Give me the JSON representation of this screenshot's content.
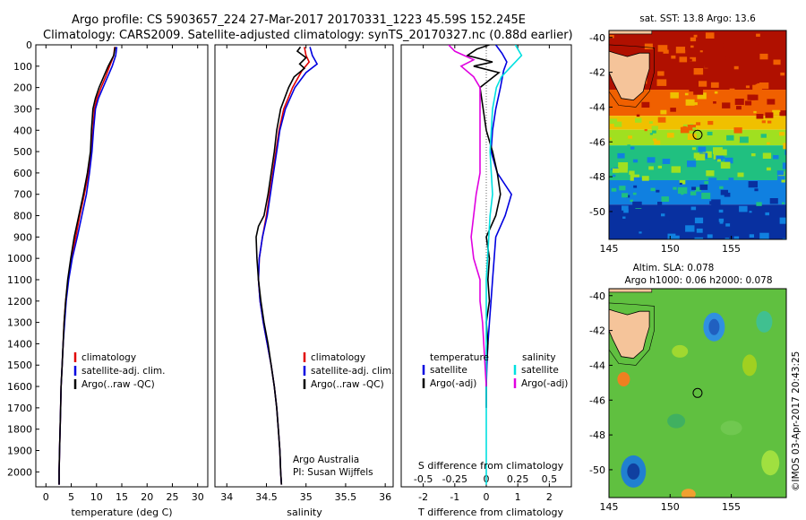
{
  "header": {
    "line1": "Argo profile: CS 5903657_224 27-Mar-2017 20170331_1223 45.59S 152.245E",
    "line2": "Climatology: CARS2009. Satellite-adjusted climatology: synTS_20170327.nc (0.88d earlier)"
  },
  "colors": {
    "climatology": "#e00000",
    "satellite": "#0000e0",
    "argo": "#000000",
    "s_satellite": "#00e0e0",
    "s_argo": "#e000e0",
    "circle": "#000000",
    "land": "#f5c49a"
  },
  "copyright": "©IMOS 03-Apr-2017 20:43:25",
  "credit": {
    "line1": "Argo Australia",
    "line2": "PI: Susan Wijffels"
  },
  "chart_data": [
    {
      "type": "line",
      "id": "temperature",
      "xlabel": "temperature (deg C)",
      "ylabel": "",
      "xlim": [
        -2,
        32
      ],
      "ylim": [
        2070,
        0
      ],
      "xticks": [
        0,
        5,
        10,
        15,
        20,
        25,
        30
      ],
      "yticks": [
        0,
        100,
        200,
        300,
        400,
        500,
        600,
        700,
        800,
        900,
        1000,
        1100,
        1200,
        1300,
        1400,
        1500,
        1600,
        1700,
        1800,
        1900,
        2000
      ],
      "legend": [
        "climatology",
        "satellite-adj. clim.",
        "Argo(..raw -QC)"
      ],
      "legend_position": "lower-center",
      "series": [
        {
          "name": "climatology",
          "color": "#e00000",
          "depth": [
            10,
            50,
            100,
            150,
            200,
            250,
            300,
            400,
            500,
            600,
            700,
            800,
            900,
            1000,
            1100,
            1200,
            1300,
            1400,
            1500,
            1600,
            1700,
            1800,
            1900,
            2000,
            2060
          ],
          "values": [
            13.6,
            13.4,
            12.6,
            11.8,
            10.9,
            10.1,
            9.6,
            9.3,
            9.0,
            8.4,
            7.6,
            6.7,
            5.9,
            5.0,
            4.4,
            3.9,
            3.6,
            3.4,
            3.2,
            3.0,
            2.9,
            2.8,
            2.7,
            2.6,
            2.6
          ]
        },
        {
          "name": "satellite-adj. clim.",
          "color": "#0000e0",
          "depth": [
            10,
            50,
            100,
            150,
            200,
            250,
            300,
            400,
            500,
            600,
            700,
            800,
            900,
            1000,
            1100,
            1200,
            1300,
            1400,
            1500,
            1600,
            1700,
            1800,
            1900,
            2000,
            2060
          ],
          "values": [
            14.0,
            13.8,
            13.1,
            12.2,
            11.3,
            10.4,
            9.8,
            9.4,
            9.1,
            8.6,
            8.0,
            7.1,
            6.2,
            5.2,
            4.5,
            4.0,
            3.7,
            3.4,
            3.2,
            3.0,
            2.9,
            2.8,
            2.7,
            2.6,
            2.6
          ]
        },
        {
          "name": "Argo(..raw -QC)",
          "color": "#000000",
          "depth": [
            10,
            50,
            100,
            150,
            200,
            250,
            300,
            400,
            500,
            600,
            700,
            800,
            900,
            1000,
            1100,
            1200,
            1300,
            1400,
            1500,
            1600,
            1700,
            1800,
            1900,
            2000,
            2060
          ],
          "values": [
            13.7,
            13.4,
            12.3,
            11.4,
            10.5,
            9.8,
            9.3,
            9.0,
            8.8,
            8.2,
            7.4,
            6.5,
            5.6,
            4.9,
            4.3,
            3.9,
            3.6,
            3.4,
            3.2,
            3.0,
            2.9,
            2.8,
            2.7,
            2.6,
            2.6
          ]
        }
      ]
    },
    {
      "type": "line",
      "id": "salinity",
      "xlabel": "salinity",
      "ylabel": "",
      "xlim": [
        33.85,
        36.1
      ],
      "ylim": [
        2070,
        0
      ],
      "xticks": [
        34,
        34.5,
        35,
        35.5,
        36
      ],
      "legend": [
        "climatology",
        "satellite-adj. clim.",
        "Argo(..raw -QC)"
      ],
      "legend_position": "lower-center",
      "series": [
        {
          "name": "climatology",
          "color": "#e00000",
          "depth": [
            10,
            50,
            80,
            120,
            200,
            300,
            400,
            500,
            600,
            700,
            800,
            900,
            1000,
            1100,
            1200,
            1300,
            1400,
            1500,
            1600,
            1700,
            1800,
            1900,
            2000,
            2060
          ],
          "values": [
            34.98,
            35.0,
            35.04,
            34.95,
            34.83,
            34.72,
            34.66,
            34.62,
            34.58,
            34.54,
            34.5,
            34.45,
            34.41,
            34.4,
            34.42,
            34.46,
            34.51,
            34.56,
            34.6,
            34.63,
            34.65,
            34.67,
            34.68,
            34.69
          ]
        },
        {
          "name": "satellite-adj. clim.",
          "color": "#0000e0",
          "depth": [
            10,
            50,
            90,
            130,
            200,
            300,
            400,
            500,
            600,
            700,
            800,
            900,
            1000,
            1100,
            1200,
            1300,
            1400,
            1500,
            1600,
            1700,
            1800,
            1900,
            2000,
            2060
          ],
          "values": [
            35.05,
            35.08,
            35.14,
            35.0,
            34.86,
            34.74,
            34.67,
            34.63,
            34.59,
            34.55,
            34.51,
            34.45,
            34.41,
            34.4,
            34.42,
            34.46,
            34.51,
            34.56,
            34.6,
            34.63,
            34.65,
            34.67,
            34.68,
            34.69
          ]
        },
        {
          "name": "Argo(..raw -QC)",
          "color": "#000000",
          "depth": [
            10,
            30,
            60,
            90,
            110,
            150,
            200,
            300,
            400,
            500,
            600,
            700,
            800,
            850,
            900,
            1000,
            1100,
            1200,
            1300,
            1400,
            1500,
            1600,
            1700,
            1800,
            1900,
            2000,
            2060
          ],
          "values": [
            34.93,
            34.89,
            35.0,
            34.92,
            34.98,
            34.85,
            34.78,
            34.68,
            34.63,
            34.6,
            34.56,
            34.52,
            34.47,
            34.4,
            34.37,
            34.38,
            34.4,
            34.43,
            34.47,
            34.52,
            34.56,
            34.6,
            34.63,
            34.65,
            34.67,
            34.68,
            34.69
          ]
        }
      ]
    },
    {
      "type": "line",
      "id": "difference",
      "xlabel": "T difference from climatology",
      "xlabel_top": "S difference from climatology",
      "xlim": [
        -2.7,
        2.7
      ],
      "ylim": [
        2070,
        0
      ],
      "xticks": [
        -2,
        -1,
        0,
        1,
        2
      ],
      "s_tick_labels": [
        "-0.5",
        "-0.25",
        "0",
        "0.25",
        "0.5"
      ],
      "s_ticks": [
        -0.5,
        -0.25,
        0,
        0.25,
        0.5
      ],
      "legend": {
        "temperature_title": "temperature",
        "salinity_title": "salinity",
        "items": [
          "satellite",
          "Argo(-adj)",
          "satellite",
          "Argo(-adj)"
        ]
      },
      "series": [
        {
          "name": "satellite",
          "group": "temperature",
          "color": "#0000e0",
          "depth": [
            0,
            40,
            80,
            120,
            200,
            300,
            400,
            500,
            600,
            700,
            800,
            900,
            1000,
            1100,
            1200,
            1300,
            1400,
            1500,
            1600,
            1700
          ],
          "values": [
            0.3,
            0.5,
            0.65,
            0.55,
            0.45,
            0.3,
            0.2,
            0.15,
            0.35,
            0.8,
            0.6,
            0.3,
            0.25,
            0.2,
            0.15,
            0.1,
            0.05,
            0.02,
            0.0,
            0.0
          ]
        },
        {
          "name": "Argo(-adj)",
          "group": "temperature",
          "color": "#000000",
          "depth": [
            0,
            20,
            50,
            80,
            100,
            130,
            200,
            300,
            400,
            500,
            600,
            700,
            800,
            900,
            1000,
            1100,
            1200,
            1300,
            1400,
            1500,
            1600,
            1700
          ],
          "values": [
            0.1,
            -0.3,
            -0.6,
            0.2,
            -0.4,
            0.4,
            -0.2,
            -0.1,
            0.0,
            0.2,
            0.35,
            0.45,
            0.3,
            0.0,
            0.1,
            0.05,
            0.1,
            0.0,
            0.05,
            0.0,
            0.0,
            0.0
          ]
        },
        {
          "name": "satellite",
          "group": "salinity",
          "color": "#00e0e0",
          "depth": [
            0,
            50,
            100,
            150,
            200,
            300,
            400,
            500,
            600,
            700,
            800,
            900,
            1000,
            1100,
            1200,
            1400,
            1600,
            1800,
            2000,
            2060
          ],
          "values": [
            0.23,
            0.28,
            0.2,
            0.12,
            0.08,
            0.05,
            0.04,
            0.03,
            0.04,
            0.05,
            0.03,
            0.02,
            0.01,
            0.0,
            0.0,
            0.0,
            0.0,
            0.0,
            0.0,
            0.0
          ]
        },
        {
          "name": "Argo(-adj)",
          "group": "salinity",
          "color": "#e000e0",
          "depth": [
            0,
            30,
            70,
            100,
            150,
            200,
            300,
            400,
            500,
            600,
            700,
            800,
            900,
            1000,
            1100,
            1200,
            1300,
            1400,
            1500,
            1600
          ],
          "values": [
            -0.3,
            -0.25,
            -0.1,
            -0.2,
            -0.1,
            -0.05,
            -0.05,
            -0.05,
            -0.05,
            -0.05,
            -0.08,
            -0.1,
            -0.12,
            -0.1,
            -0.05,
            -0.05,
            -0.03,
            -0.02,
            -0.01,
            0.0
          ]
        }
      ]
    },
    {
      "type": "heatmap",
      "id": "sst-map",
      "title": "sat. SST: 13.8 Argo: 13.6",
      "xlim": [
        145,
        159.5
      ],
      "ylim": [
        -51.6,
        -39.6
      ],
      "xticks": [
        145,
        150,
        155
      ],
      "yticks": [
        -40,
        -42,
        -44,
        -46,
        -48,
        -50
      ],
      "profile_marker": {
        "lon": 152.245,
        "lat": -45.59
      },
      "color_bands": [
        {
          "lat_from": -39.6,
          "lat_to": -43.0,
          "color": "#b01000"
        },
        {
          "lat_from": -43.0,
          "lat_to": -44.5,
          "color": "#f06000"
        },
        {
          "lat_from": -44.5,
          "lat_to": -45.3,
          "color": "#f0c000"
        },
        {
          "lat_from": -45.3,
          "lat_to": -46.2,
          "color": "#a0e020"
        },
        {
          "lat_from": -46.2,
          "lat_to": -48.2,
          "color": "#20c080"
        },
        {
          "lat_from": -48.2,
          "lat_to": -49.6,
          "color": "#1080e0"
        },
        {
          "lat_from": -49.6,
          "lat_to": -51.6,
          "color": "#0830a0"
        }
      ]
    },
    {
      "type": "heatmap",
      "id": "sla-map",
      "title": "Altim. SLA: 0.078",
      "subtitle": "Argo h1000: 0.06 h2000: 0.078",
      "xlim": [
        145,
        159.5
      ],
      "ylim": [
        -51.6,
        -39.6
      ],
      "xticks": [
        145,
        150,
        155
      ],
      "yticks": [
        -40,
        -42,
        -44,
        -46,
        -48,
        -50
      ],
      "profile_marker": {
        "lon": 152.245,
        "lat": -45.59
      },
      "background_color": "#60c040"
    }
  ]
}
